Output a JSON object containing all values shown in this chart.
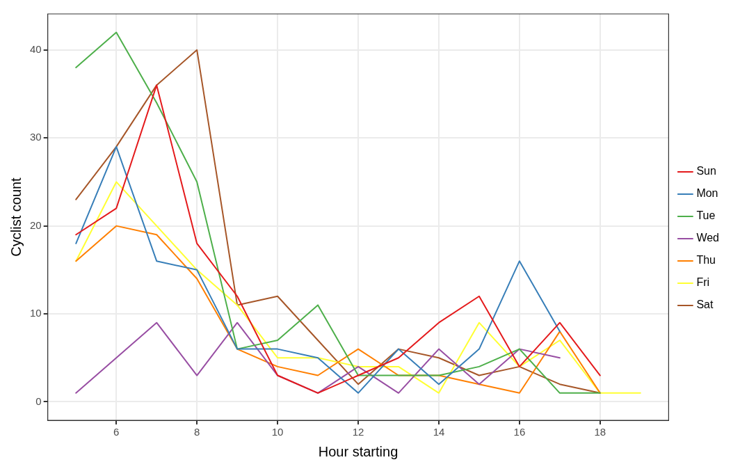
{
  "chart_data": {
    "type": "line",
    "xlabel": "Hour starting",
    "ylabel": "Cyclist count",
    "x": [
      5,
      6,
      7,
      8,
      9,
      10,
      11,
      12,
      13,
      14,
      15,
      16,
      17,
      18,
      19
    ],
    "series": [
      {
        "name": "Sun",
        "color": "#e41a1c",
        "values": [
          19,
          22,
          36,
          18,
          12,
          3,
          1,
          3,
          5,
          9,
          12,
          4,
          9,
          3,
          null
        ]
      },
      {
        "name": "Mon",
        "color": "#377eb8",
        "values": [
          18,
          29,
          16,
          15,
          6,
          6,
          5,
          1,
          6,
          2,
          6,
          16,
          8,
          null,
          null
        ]
      },
      {
        "name": "Tue",
        "color": "#4daf4a",
        "values": [
          38,
          42,
          34,
          25,
          6,
          7,
          11,
          3,
          3,
          3,
          4,
          6,
          1,
          1,
          null
        ]
      },
      {
        "name": "Wed",
        "color": "#984ea3",
        "values": [
          1,
          5,
          9,
          3,
          9,
          3,
          1,
          4,
          1,
          6,
          2,
          6,
          5,
          null,
          null
        ]
      },
      {
        "name": "Thu",
        "color": "#ff7f00",
        "values": [
          16,
          20,
          19,
          14,
          6,
          4,
          3,
          6,
          3,
          3,
          2,
          1,
          8,
          1,
          null
        ]
      },
      {
        "name": "Fri",
        "color": "#ffff33",
        "values": [
          16,
          25,
          20,
          15,
          11,
          5,
          5,
          4,
          4,
          1,
          9,
          4,
          7,
          1,
          1
        ]
      },
      {
        "name": "Sat",
        "color": "#a65628",
        "values": [
          23,
          29,
          36,
          40,
          11,
          12,
          7,
          2,
          6,
          5,
          3,
          4,
          2,
          1,
          null
        ]
      }
    ],
    "xlim": [
      4.3,
      19.7
    ],
    "xticks": [
      6,
      8,
      10,
      12,
      14,
      16,
      18
    ],
    "ylim": [
      -2.1,
      44.1
    ],
    "yticks": [
      0,
      10,
      20,
      30,
      40
    ],
    "grid": true,
    "legend": "right",
    "marker": "none",
    "line_style": "solid"
  }
}
